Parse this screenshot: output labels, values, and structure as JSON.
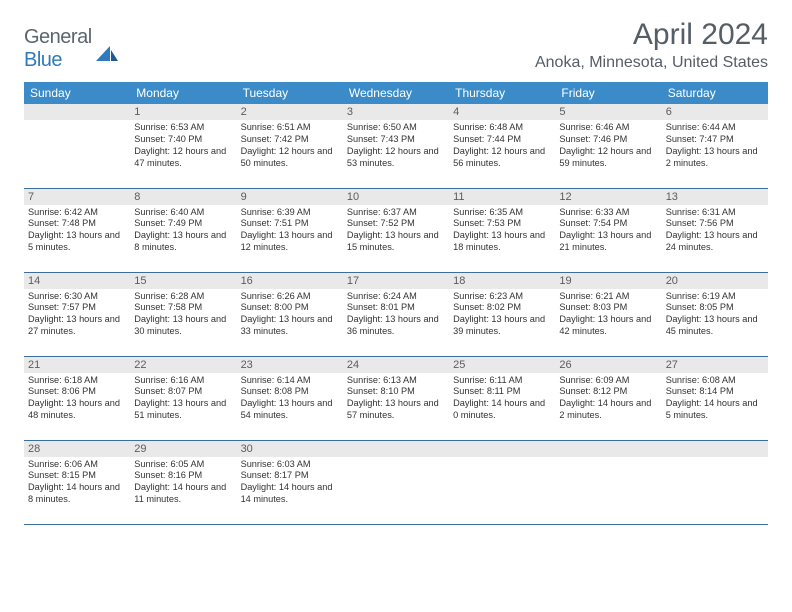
{
  "brand": {
    "text1": "General",
    "text2": "Blue"
  },
  "title": "April 2024",
  "location": "Anoka, Minnesota, United States",
  "colors": {
    "header_bg": "#3b8bc9",
    "header_fg": "#ffffff",
    "daynum_bg": "#e9e9e9",
    "row_border": "#3b6fa0",
    "title_color": "#555d66",
    "logo_gray": "#5a6570",
    "logo_blue": "#2f7abf",
    "body_text": "#333333"
  },
  "day_headers": [
    "Sunday",
    "Monday",
    "Tuesday",
    "Wednesday",
    "Thursday",
    "Friday",
    "Saturday"
  ],
  "weeks": [
    [
      null,
      {
        "n": "1",
        "sr": "6:53 AM",
        "ss": "7:40 PM",
        "dl": "12 hours and 47 minutes."
      },
      {
        "n": "2",
        "sr": "6:51 AM",
        "ss": "7:42 PM",
        "dl": "12 hours and 50 minutes."
      },
      {
        "n": "3",
        "sr": "6:50 AM",
        "ss": "7:43 PM",
        "dl": "12 hours and 53 minutes."
      },
      {
        "n": "4",
        "sr": "6:48 AM",
        "ss": "7:44 PM",
        "dl": "12 hours and 56 minutes."
      },
      {
        "n": "5",
        "sr": "6:46 AM",
        "ss": "7:46 PM",
        "dl": "12 hours and 59 minutes."
      },
      {
        "n": "6",
        "sr": "6:44 AM",
        "ss": "7:47 PM",
        "dl": "13 hours and 2 minutes."
      }
    ],
    [
      {
        "n": "7",
        "sr": "6:42 AM",
        "ss": "7:48 PM",
        "dl": "13 hours and 5 minutes."
      },
      {
        "n": "8",
        "sr": "6:40 AM",
        "ss": "7:49 PM",
        "dl": "13 hours and 8 minutes."
      },
      {
        "n": "9",
        "sr": "6:39 AM",
        "ss": "7:51 PM",
        "dl": "13 hours and 12 minutes."
      },
      {
        "n": "10",
        "sr": "6:37 AM",
        "ss": "7:52 PM",
        "dl": "13 hours and 15 minutes."
      },
      {
        "n": "11",
        "sr": "6:35 AM",
        "ss": "7:53 PM",
        "dl": "13 hours and 18 minutes."
      },
      {
        "n": "12",
        "sr": "6:33 AM",
        "ss": "7:54 PM",
        "dl": "13 hours and 21 minutes."
      },
      {
        "n": "13",
        "sr": "6:31 AM",
        "ss": "7:56 PM",
        "dl": "13 hours and 24 minutes."
      }
    ],
    [
      {
        "n": "14",
        "sr": "6:30 AM",
        "ss": "7:57 PM",
        "dl": "13 hours and 27 minutes."
      },
      {
        "n": "15",
        "sr": "6:28 AM",
        "ss": "7:58 PM",
        "dl": "13 hours and 30 minutes."
      },
      {
        "n": "16",
        "sr": "6:26 AM",
        "ss": "8:00 PM",
        "dl": "13 hours and 33 minutes."
      },
      {
        "n": "17",
        "sr": "6:24 AM",
        "ss": "8:01 PM",
        "dl": "13 hours and 36 minutes."
      },
      {
        "n": "18",
        "sr": "6:23 AM",
        "ss": "8:02 PM",
        "dl": "13 hours and 39 minutes."
      },
      {
        "n": "19",
        "sr": "6:21 AM",
        "ss": "8:03 PM",
        "dl": "13 hours and 42 minutes."
      },
      {
        "n": "20",
        "sr": "6:19 AM",
        "ss": "8:05 PM",
        "dl": "13 hours and 45 minutes."
      }
    ],
    [
      {
        "n": "21",
        "sr": "6:18 AM",
        "ss": "8:06 PM",
        "dl": "13 hours and 48 minutes."
      },
      {
        "n": "22",
        "sr": "6:16 AM",
        "ss": "8:07 PM",
        "dl": "13 hours and 51 minutes."
      },
      {
        "n": "23",
        "sr": "6:14 AM",
        "ss": "8:08 PM",
        "dl": "13 hours and 54 minutes."
      },
      {
        "n": "24",
        "sr": "6:13 AM",
        "ss": "8:10 PM",
        "dl": "13 hours and 57 minutes."
      },
      {
        "n": "25",
        "sr": "6:11 AM",
        "ss": "8:11 PM",
        "dl": "14 hours and 0 minutes."
      },
      {
        "n": "26",
        "sr": "6:09 AM",
        "ss": "8:12 PM",
        "dl": "14 hours and 2 minutes."
      },
      {
        "n": "27",
        "sr": "6:08 AM",
        "ss": "8:14 PM",
        "dl": "14 hours and 5 minutes."
      }
    ],
    [
      {
        "n": "28",
        "sr": "6:06 AM",
        "ss": "8:15 PM",
        "dl": "14 hours and 8 minutes."
      },
      {
        "n": "29",
        "sr": "6:05 AM",
        "ss": "8:16 PM",
        "dl": "14 hours and 11 minutes."
      },
      {
        "n": "30",
        "sr": "6:03 AM",
        "ss": "8:17 PM",
        "dl": "14 hours and 14 minutes."
      },
      null,
      null,
      null,
      null
    ]
  ]
}
